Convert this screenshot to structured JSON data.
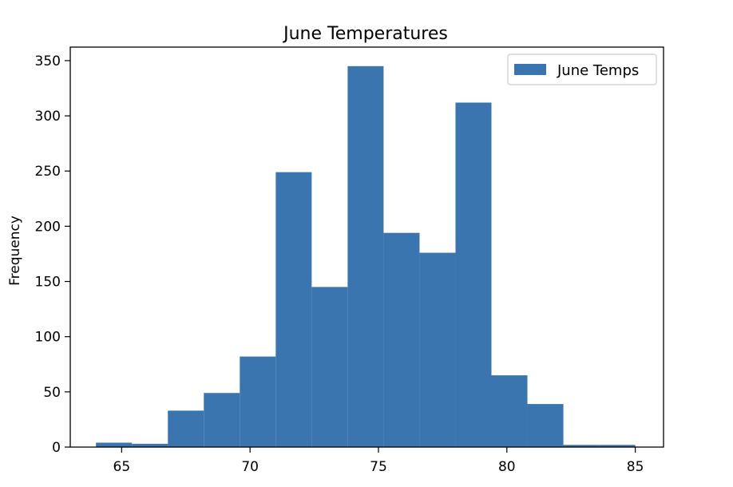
{
  "chart_data": {
    "type": "bar",
    "subtype": "histogram",
    "title": "June Temperatures",
    "xlabel": "",
    "ylabel": "Frequency",
    "bins": [
      [
        64,
        65.4,
        4
      ],
      [
        65.4,
        66.8,
        3
      ],
      [
        66.8,
        68.2,
        33
      ],
      [
        68.2,
        69.6,
        49
      ],
      [
        69.6,
        71.0,
        82
      ],
      [
        71.0,
        72.4,
        249
      ],
      [
        72.4,
        73.8,
        145
      ],
      [
        73.8,
        75.2,
        345
      ],
      [
        75.2,
        76.6,
        194
      ],
      [
        76.6,
        78.0,
        176
      ],
      [
        78.0,
        79.4,
        312
      ],
      [
        79.4,
        80.8,
        65
      ],
      [
        80.8,
        82.2,
        39
      ],
      [
        82.2,
        83.6,
        2
      ],
      [
        83.6,
        85.0,
        2
      ]
    ],
    "xlim": [
      63,
      86.1
    ],
    "ylim": [
      0,
      362.25
    ],
    "xticks": [
      65,
      70,
      75,
      80,
      85
    ],
    "yticks": [
      0,
      50,
      100,
      150,
      200,
      250,
      300,
      350
    ],
    "grid": false,
    "legend": {
      "entries": [
        "June Temps"
      ],
      "position": "upper right"
    },
    "series": [
      {
        "name": "June Temps",
        "color": "#3b75af"
      }
    ]
  }
}
